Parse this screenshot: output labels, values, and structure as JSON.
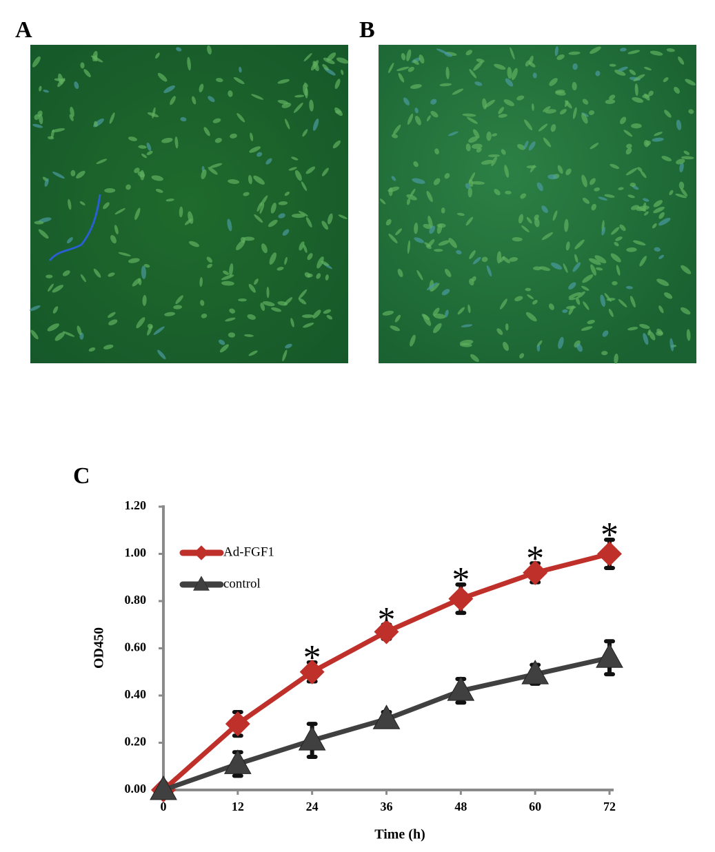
{
  "panel_labels": [
    "A",
    "B",
    "C"
  ],
  "chart_data": {
    "type": "line",
    "xlabel": "Time (h)",
    "ylabel": "OD450",
    "x": [
      0,
      12,
      24,
      36,
      48,
      60,
      72
    ],
    "xlim": [
      0,
      72
    ],
    "xticks": [
      0,
      12,
      24,
      36,
      48,
      60,
      72
    ],
    "ylim": [
      0,
      1.2
    ],
    "yticks": [
      {
        "value": 0,
        "label": "0.00"
      },
      {
        "value": 0.2,
        "label": "0.20"
      },
      {
        "value": 0.4,
        "label": "0.40"
      },
      {
        "value": 0.6,
        "label": "0.60"
      },
      {
        "value": 0.8,
        "label": "0.80"
      },
      {
        "value": 1.0,
        "label": "1.00"
      },
      {
        "value": 1.2,
        "label": "1.20"
      }
    ],
    "legend": "upper left",
    "series": [
      {
        "name": "Ad-FGF1",
        "color": "#c0302a",
        "marker": "diamond",
        "values": [
          0,
          0.28,
          0.5,
          0.67,
          0.81,
          0.92,
          1.0
        ],
        "errors": [
          0,
          0.05,
          0.04,
          0.03,
          0.06,
          0.04,
          0.06
        ]
      },
      {
        "name": "control",
        "color": "#404040",
        "marker": "triangle",
        "values": [
          0,
          0.11,
          0.21,
          0.3,
          0.42,
          0.49,
          0.56
        ],
        "errors": [
          0,
          0.05,
          0.07,
          0.03,
          0.05,
          0.04,
          0.07
        ]
      }
    ],
    "annotations": [
      {
        "text": "*",
        "x": 24
      },
      {
        "text": "*",
        "x": 36
      },
      {
        "text": "*",
        "x": 48
      },
      {
        "text": "*",
        "x": 60
      },
      {
        "text": "*",
        "x": 72
      }
    ]
  }
}
